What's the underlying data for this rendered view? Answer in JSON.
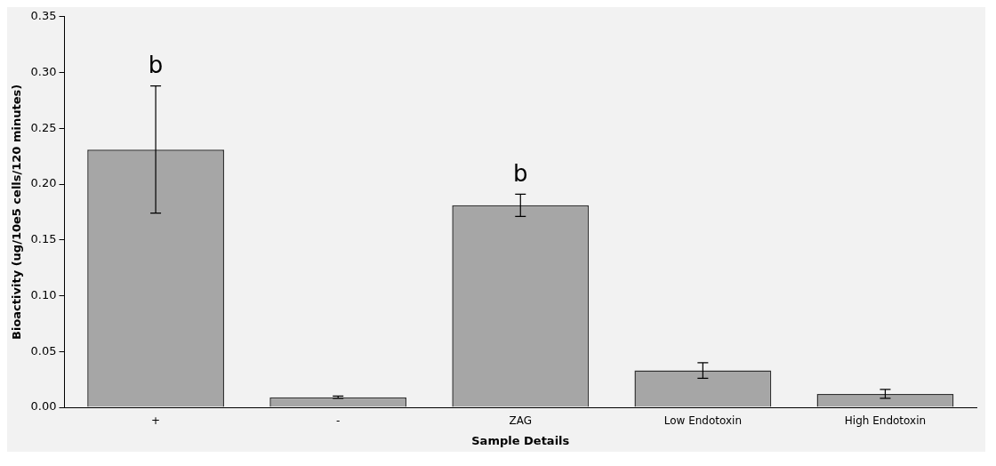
{
  "chart_data": {
    "type": "bar",
    "xlabel": "Sample Details",
    "ylabel": "Bioactivity (ug/10e5 cells/120 minutes)",
    "categories": [
      "+",
      "-",
      "ZAG",
      "Low Endotoxin",
      "High Endotoxin"
    ],
    "values": [
      0.231,
      0.009,
      0.181,
      0.033,
      0.012
    ],
    "errors": [
      0.057,
      0.001,
      0.01,
      0.007,
      0.004
    ],
    "color": "#a6a6a6",
    "ylim": [
      0,
      0.35
    ],
    "yticks": [
      {
        "value": 0,
        "label": "0.00"
      },
      {
        "value": 0.05,
        "label": "0.05"
      },
      {
        "value": 0.1,
        "label": "0.10"
      },
      {
        "value": 0.15,
        "label": "0.15"
      },
      {
        "value": 0.2,
        "label": "0.20"
      },
      {
        "value": 0.25,
        "label": "0.25"
      },
      {
        "value": 0.3,
        "label": "0.30"
      },
      {
        "value": 0.35,
        "label": "0.35"
      }
    ],
    "grid": false,
    "legend": false,
    "annotations": [
      {
        "text": "b",
        "x": "+",
        "y": 0.288
      },
      {
        "text": "b",
        "x": "ZAG",
        "y": 0.191
      }
    ]
  }
}
